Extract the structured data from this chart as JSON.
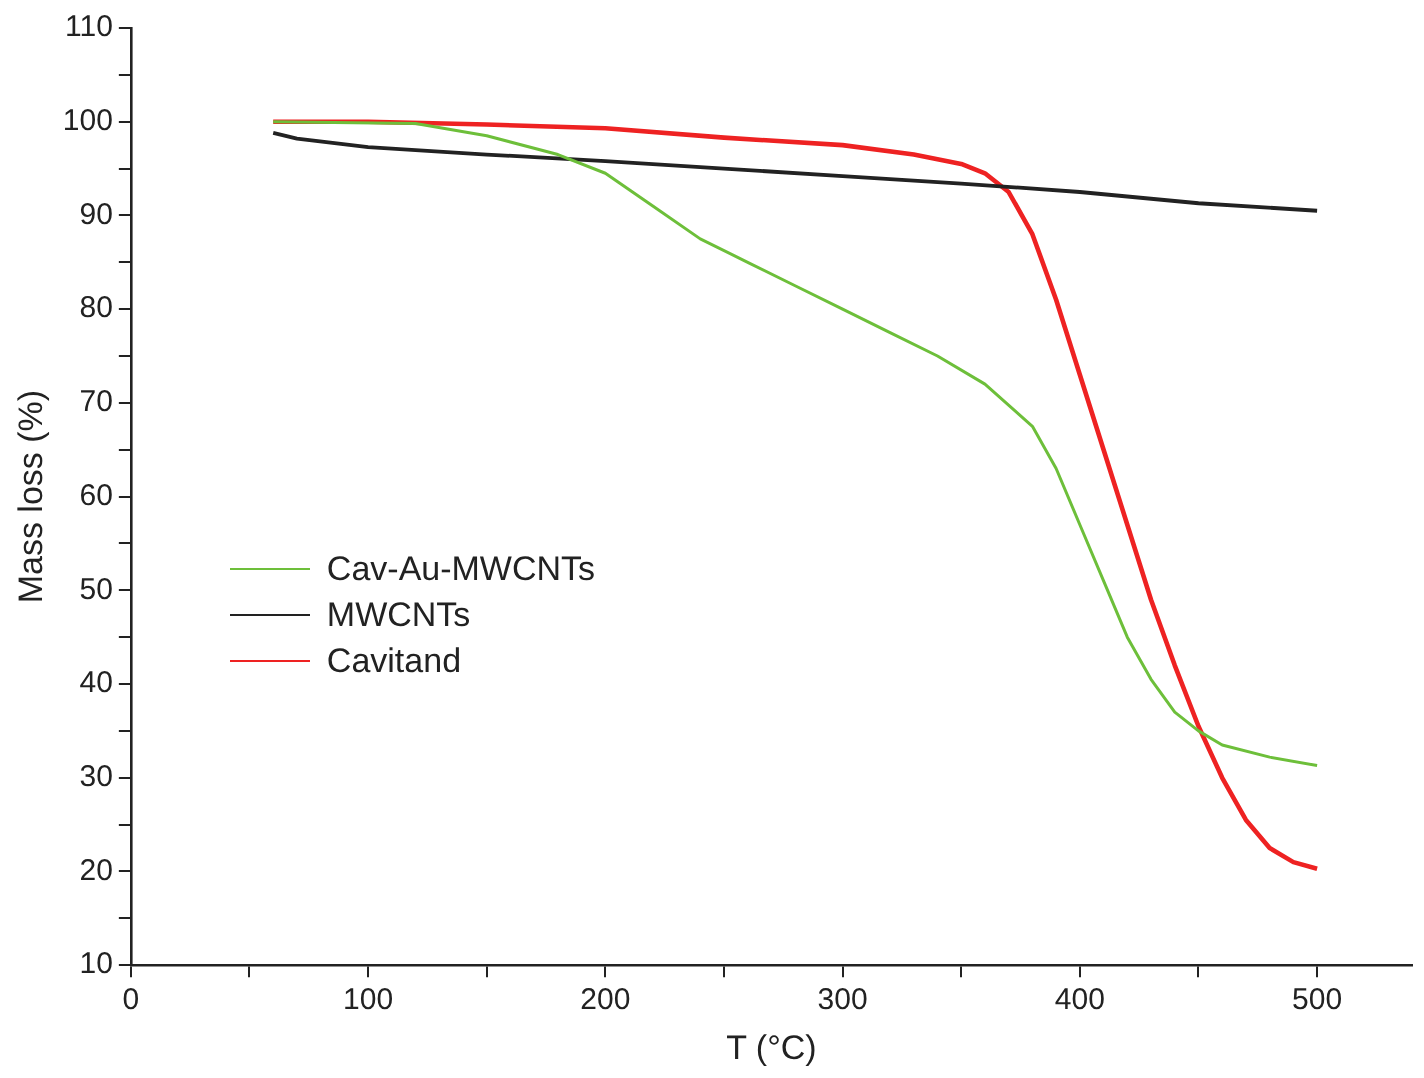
{
  "chart_data": {
    "type": "line",
    "xlabel": "T (°C)",
    "ylabel": "Mass loss (%)",
    "xlim": [
      0,
      540
    ],
    "xticks": [
      0,
      {
        "value": 50,
        "label": null
      },
      100,
      {
        "value": 150,
        "label": null
      },
      200,
      {
        "value": 250,
        "label": null
      },
      300,
      {
        "value": 350,
        "label": null
      },
      400,
      {
        "value": 450,
        "label": null
      },
      500
    ],
    "ylim": [
      10,
      110
    ],
    "yticks": [
      10,
      {
        "value": 15,
        "label": null
      },
      20,
      {
        "value": 25,
        "label": null
      },
      30,
      {
        "value": 35,
        "label": null
      },
      40,
      {
        "value": 45,
        "label": null
      },
      50,
      {
        "value": 55,
        "label": null
      },
      60,
      {
        "value": 65,
        "label": null
      },
      70,
      {
        "value": 75,
        "label": null
      },
      80,
      {
        "value": 85,
        "label": null
      },
      90,
      {
        "value": 95,
        "label": null
      },
      100,
      {
        "value": 105,
        "label": null
      },
      110
    ],
    "grid": false,
    "legend": "left",
    "marker": "none",
    "line_style": "solid",
    "series": [
      {
        "name": "Cav-Au-MWCNTs",
        "color": "#6dbf3a",
        "x": [
          60,
          120,
          150,
          180,
          200,
          220,
          240,
          260,
          280,
          300,
          320,
          340,
          360,
          380,
          390,
          400,
          410,
          420,
          430,
          440,
          450,
          460,
          480,
          500
        ],
        "values": [
          100,
          99.8,
          98.5,
          96.5,
          94.5,
          91,
          87.5,
          85,
          82.5,
          80,
          77.5,
          75,
          72,
          67.5,
          63,
          57,
          51,
          45,
          40.5,
          37,
          35,
          33.5,
          32.2,
          31.3
        ]
      },
      {
        "name": "MWCNTs",
        "color": "#222222",
        "x": [
          60,
          70,
          100,
          150,
          200,
          250,
          300,
          350,
          400,
          450,
          500
        ],
        "values": [
          98.8,
          98.2,
          97.3,
          96.5,
          95.8,
          95,
          94.2,
          93.4,
          92.5,
          91.3,
          90.5
        ]
      },
      {
        "name": "Cavitand",
        "color": "#ee2222",
        "x": [
          60,
          100,
          150,
          200,
          250,
          300,
          330,
          350,
          360,
          370,
          380,
          390,
          400,
          410,
          420,
          430,
          440,
          450,
          460,
          470,
          480,
          490,
          500
        ],
        "values": [
          100,
          100,
          99.7,
          99.3,
          98.3,
          97.5,
          96.5,
          95.5,
          94.5,
          92.5,
          88,
          81,
          73,
          65,
          57,
          49,
          42,
          35.5,
          30,
          25.5,
          22.5,
          21,
          20.3
        ]
      }
    ]
  }
}
